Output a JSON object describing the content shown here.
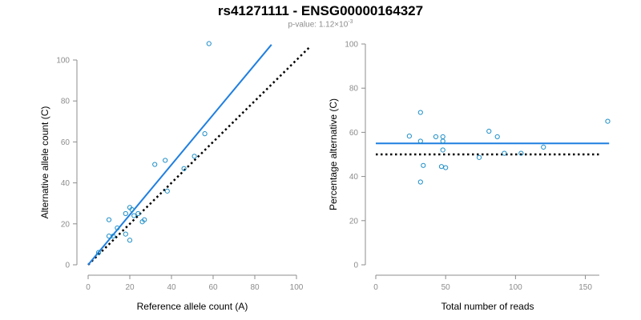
{
  "title": "rs41271111 - ENSG00000164327",
  "subtitle": {
    "prefix": "p-value: 1.12×10",
    "exponent": "-3"
  },
  "colors": {
    "fit": "#1f7fe0",
    "point": "#1f8fc8",
    "reference": "#000000",
    "axis": "#8c8c8c"
  },
  "chart_data": [
    {
      "type": "scatter",
      "xlabel": "Reference allele count (A)",
      "ylabel": "Alternative allele count (C)",
      "xlim": [
        0,
        100
      ],
      "ylim": [
        0,
        100
      ],
      "xticks": [
        0,
        20,
        40,
        60,
        80,
        100
      ],
      "yticks": [
        0,
        20,
        40,
        60,
        80,
        100
      ],
      "grid": false,
      "points": [
        {
          "x": 5,
          "y": 6
        },
        {
          "x": 10,
          "y": 14
        },
        {
          "x": 10,
          "y": 22
        },
        {
          "x": 12,
          "y": 14
        },
        {
          "x": 14,
          "y": 18
        },
        {
          "x": 18,
          "y": 15
        },
        {
          "x": 18,
          "y": 25
        },
        {
          "x": 20,
          "y": 12
        },
        {
          "x": 20,
          "y": 28
        },
        {
          "x": 21,
          "y": 27
        },
        {
          "x": 22,
          "y": 24
        },
        {
          "x": 24,
          "y": 25
        },
        {
          "x": 26,
          "y": 21
        },
        {
          "x": 27,
          "y": 22
        },
        {
          "x": 32,
          "y": 49
        },
        {
          "x": 37,
          "y": 51
        },
        {
          "x": 38,
          "y": 36
        },
        {
          "x": 46,
          "y": 47
        },
        {
          "x": 51,
          "y": 53
        },
        {
          "x": 56,
          "y": 64
        },
        {
          "x": 58,
          "y": 108
        }
      ],
      "fit_line": {
        "x": [
          0,
          88
        ],
        "y": [
          0,
          107.5
        ]
      },
      "reference_line": {
        "x": [
          0,
          106
        ],
        "y": [
          0,
          106
        ]
      }
    },
    {
      "type": "scatter",
      "xlabel": "Total number of reads",
      "ylabel": "Percentage alternative (C)",
      "xlim": [
        0,
        160
      ],
      "ylim": [
        0,
        100
      ],
      "xticks": [
        0,
        50,
        100,
        150
      ],
      "yticks": [
        0,
        20,
        40,
        60,
        80,
        100
      ],
      "grid": false,
      "points": [
        {
          "x": 24,
          "y": 58.3
        },
        {
          "x": 32,
          "y": 37.5
        },
        {
          "x": 32,
          "y": 56
        },
        {
          "x": 32,
          "y": 69
        },
        {
          "x": 34,
          "y": 45
        },
        {
          "x": 43,
          "y": 58
        },
        {
          "x": 47,
          "y": 44.5
        },
        {
          "x": 48,
          "y": 56
        },
        {
          "x": 48,
          "y": 58
        },
        {
          "x": 48,
          "y": 52
        },
        {
          "x": 50,
          "y": 44
        },
        {
          "x": 74,
          "y": 48.6
        },
        {
          "x": 81,
          "y": 60.5
        },
        {
          "x": 87,
          "y": 58
        },
        {
          "x": 92,
          "y": 50.5
        },
        {
          "x": 104,
          "y": 50.5
        },
        {
          "x": 120,
          "y": 53.3
        },
        {
          "x": 166,
          "y": 65
        }
      ],
      "fit_line": {
        "x": [
          0,
          167
        ],
        "y": [
          55,
          55
        ]
      },
      "reference_line": {
        "x": [
          0,
          160
        ],
        "y": [
          50,
          50
        ]
      }
    }
  ]
}
